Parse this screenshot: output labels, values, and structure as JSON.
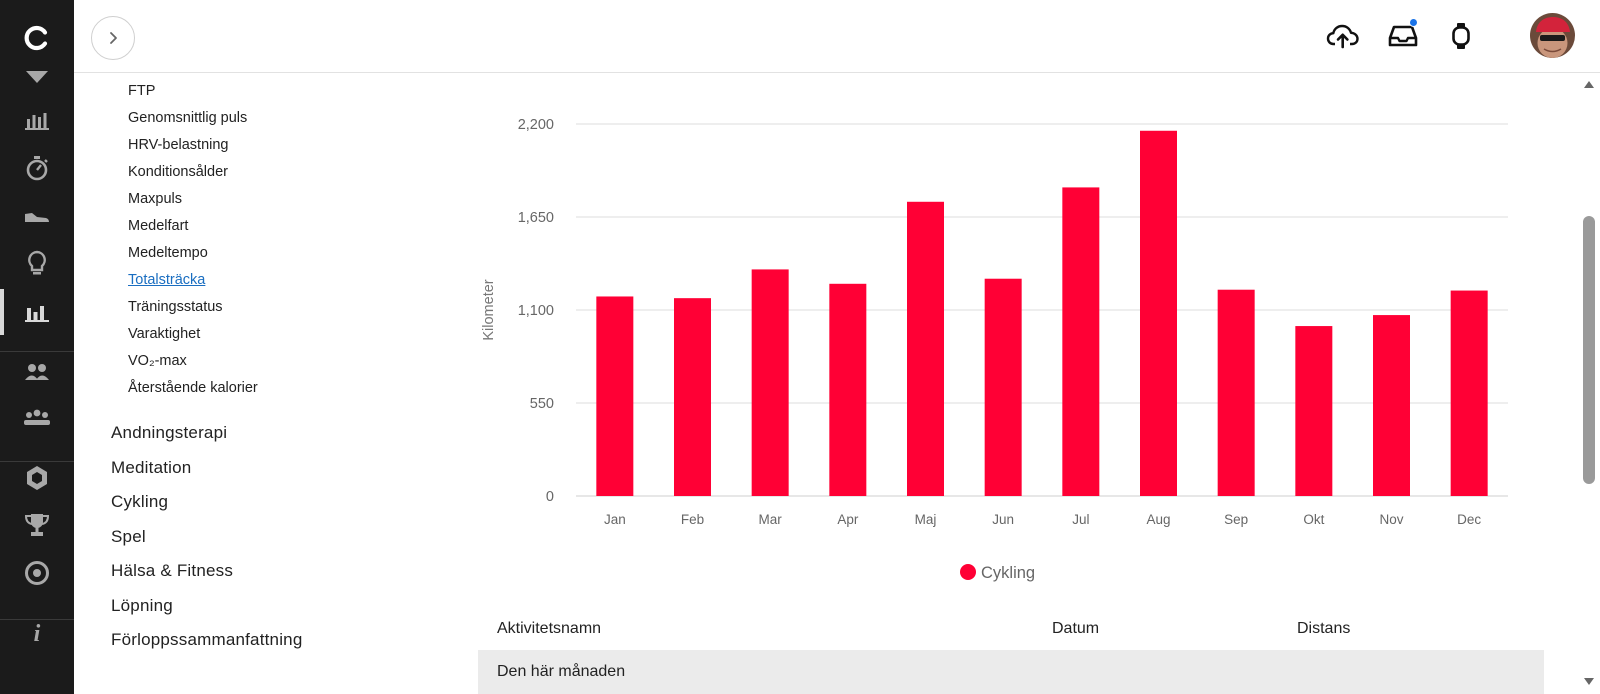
{
  "topbar": {
    "expand_icon": "chevron-right-icon",
    "upload_icon": "cloud-upload-icon",
    "inbox_icon": "inbox-icon",
    "watch_icon": "watch-icon",
    "notification_dot_color": "#1a73e8"
  },
  "rail": {
    "items": [
      {
        "name": "logo-icon",
        "active": false
      },
      {
        "name": "chevron-down-icon",
        "active": false
      },
      {
        "name": "bar-chart-icon",
        "active": false
      },
      {
        "name": "stopwatch-icon",
        "active": false
      },
      {
        "name": "shoe-icon",
        "active": false
      },
      {
        "name": "lightbulb-icon",
        "active": false
      },
      {
        "name": "reports-icon",
        "active": true
      },
      {
        "name": "connections-icon",
        "active": false
      },
      {
        "name": "groups-icon",
        "active": false
      },
      {
        "name": "badge-icon",
        "active": false
      },
      {
        "name": "trophy-icon",
        "active": false
      },
      {
        "name": "target-icon",
        "active": false
      },
      {
        "name": "info-icon",
        "active": false
      }
    ]
  },
  "menu": {
    "sub_items": [
      {
        "label": "FTP",
        "active": false
      },
      {
        "label": "Genomsnittlig puls",
        "active": false
      },
      {
        "label": "HRV-belastning",
        "active": false
      },
      {
        "label": "Konditionsålder",
        "active": false
      },
      {
        "label": "Maxpuls",
        "active": false
      },
      {
        "label": "Medelfart",
        "active": false
      },
      {
        "label": "Medeltempo",
        "active": false
      },
      {
        "label": "Totalsträcka",
        "active": true
      },
      {
        "label": "Träningsstatus",
        "active": false
      },
      {
        "label": "Varaktighet",
        "active": false
      },
      {
        "label": "VO₂-max",
        "active": false
      },
      {
        "label": "Återstående kalorier",
        "active": false
      }
    ],
    "categories": [
      "Andningsterapi",
      "Meditation",
      "Cykling",
      "Spel",
      "Hälsa & Fitness",
      "Löpning",
      "Förloppssammanfattning"
    ]
  },
  "chart_data": {
    "type": "bar",
    "categories": [
      "Jan",
      "Feb",
      "Mar",
      "Apr",
      "Maj",
      "Jun",
      "Jul",
      "Aug",
      "Sep",
      "Okt",
      "Nov",
      "Dec"
    ],
    "series": [
      {
        "name": "Cykling",
        "color": "#ff0035",
        "values": [
          1180,
          1170,
          1340,
          1255,
          1740,
          1285,
          1825,
          2160,
          1220,
          1005,
          1070,
          1215
        ]
      }
    ],
    "ylabel": "Kilometer",
    "yticks": [
      0,
      550,
      1100,
      1650,
      2200
    ],
    "ytick_labels": [
      "0",
      "550",
      "1,100",
      "1,650",
      "2,200"
    ],
    "ylim": [
      0,
      2200
    ],
    "grid": true,
    "legend_position": "bottom-center"
  },
  "table": {
    "headers": [
      "Aktivitetsnamn",
      "Datum",
      "Distans"
    ],
    "group_label": "Den här månaden"
  }
}
